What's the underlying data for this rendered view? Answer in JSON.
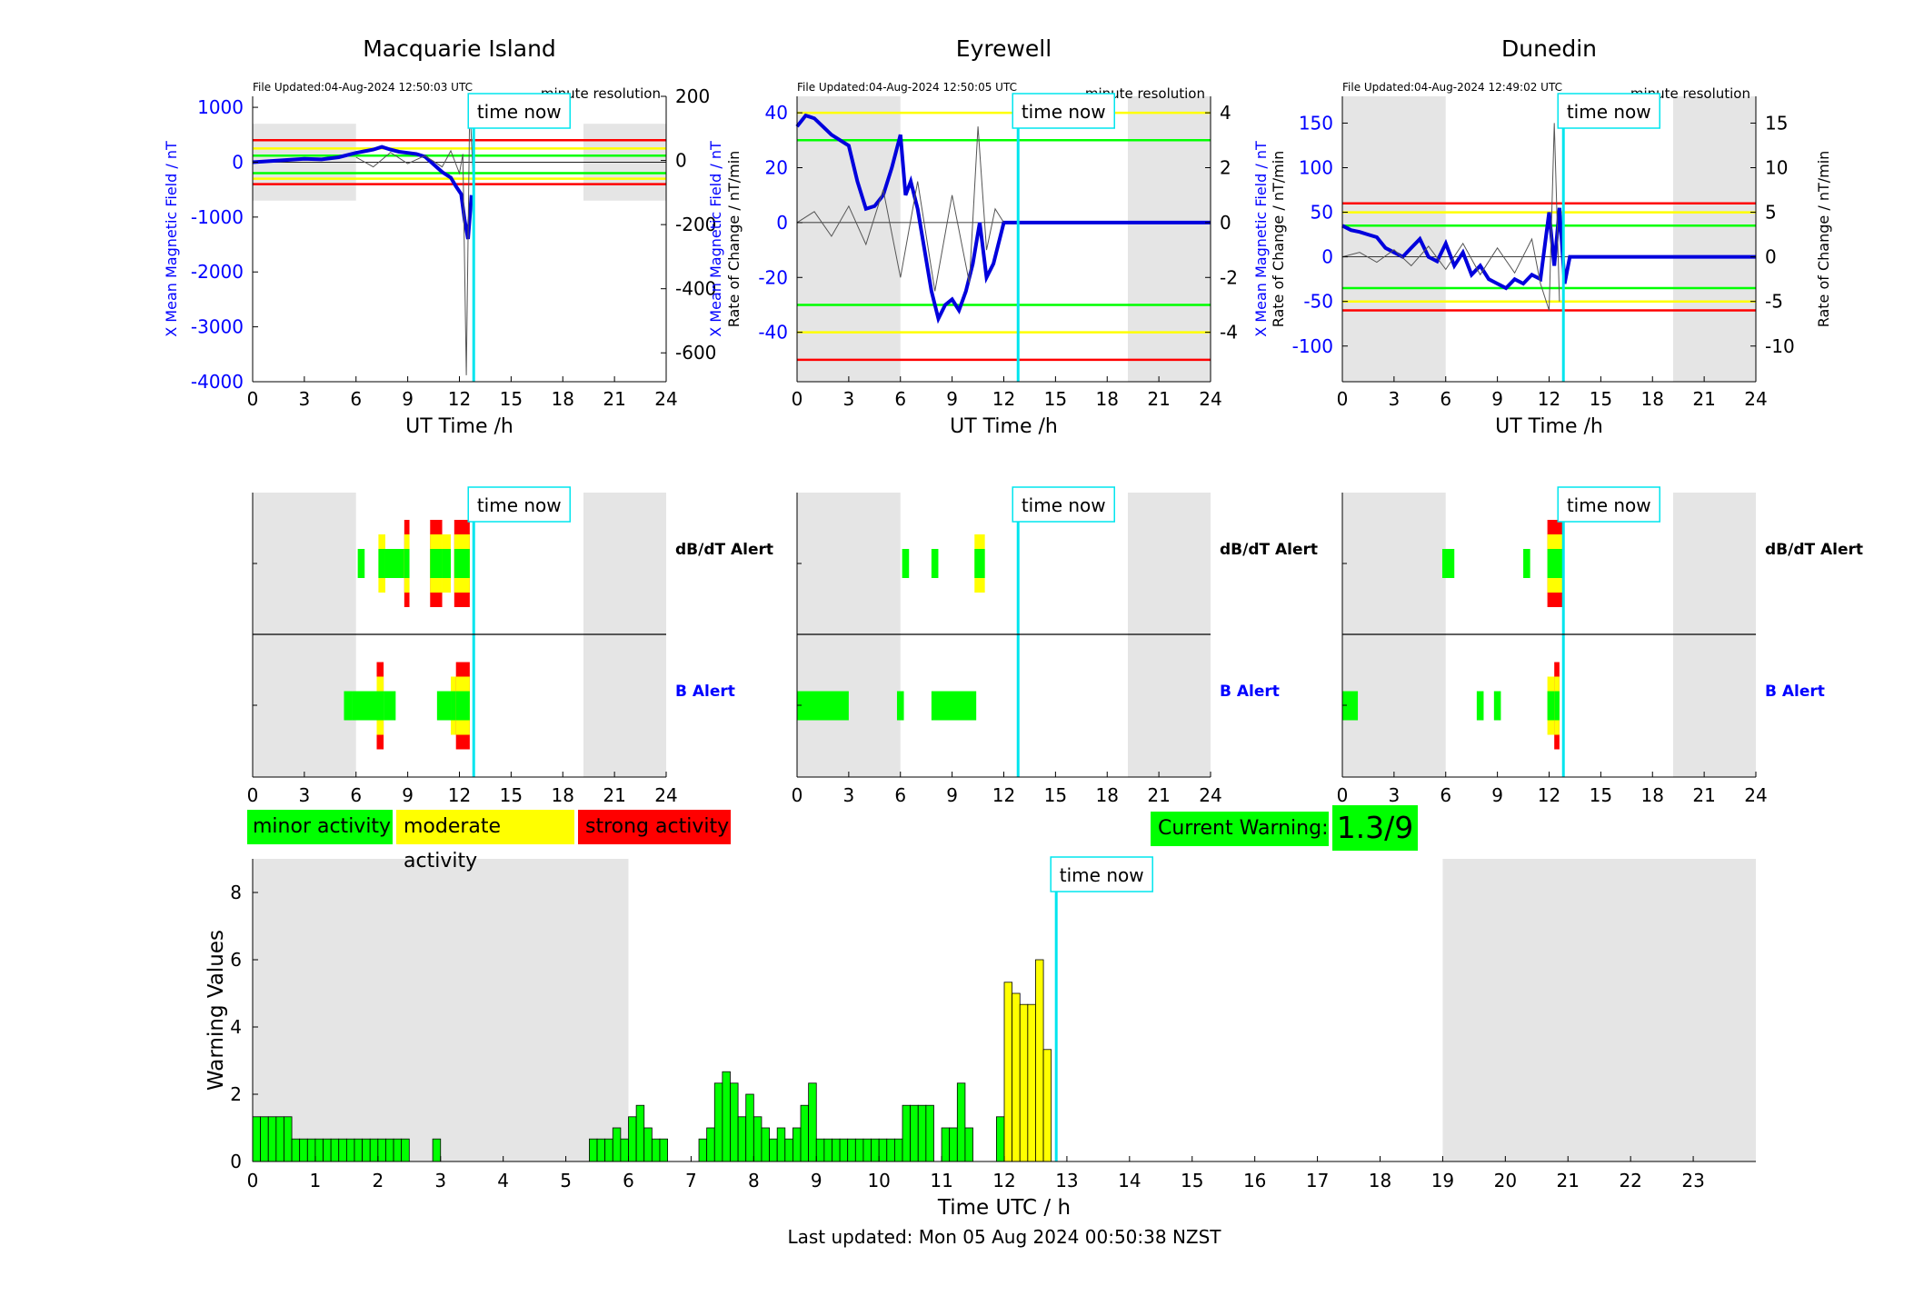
{
  "colors": {
    "axis": "#000000",
    "x_axis_blue": "#0000ff",
    "shade": "#e5e5e5",
    "minor": "#00ff00",
    "moderate": "#ffff00",
    "strong": "#ff0000",
    "time_now": "#00e5ee",
    "field_line": "#0000dd",
    "rate_line": "#555555"
  },
  "labels": {
    "time_now": "time now",
    "x_axis_top": "UT Time /h",
    "y_left_top": "X Mean Magnetic Field / nT",
    "y_right_top": "Rate of Change / nT/min",
    "minute_resolution": "minute resolution",
    "dbdt_alert": "dB/dT Alert",
    "b_alert": "B Alert",
    "x_axis_bottom": "Time UTC / h",
    "y_bottom": "Warning Values",
    "last_updated": "Last updated: Mon 05 Aug 2024 00:50:38 NZST"
  },
  "legend": {
    "minor": "minor activity",
    "moderate": "moderate activity",
    "strong": "strong activity",
    "current_warning_label": "Current Warning:",
    "current_warning_value": "1.3/9"
  },
  "time_now_hour": 12.83,
  "night_shading_hours": [
    [
      0,
      6
    ],
    [
      19.2,
      24
    ]
  ],
  "chart_data": [
    {
      "type": "line",
      "title": "Macquarie Island",
      "file_updated": "File Updated:04-Aug-2024 12:50:03 UTC",
      "xlabel": "UT Time /h",
      "xlim": [
        0,
        24
      ],
      "xticks": [
        0,
        3,
        6,
        9,
        12,
        15,
        18,
        21,
        24
      ],
      "ylabel_left": "X Mean Magnetic Field / nT",
      "ylim_left": [
        -4000,
        1200
      ],
      "yticks_left": [
        1000,
        0,
        -1000,
        -2000,
        -3000,
        -4000
      ],
      "ylabel_right": "Rate of Change / nT/min",
      "ylim_right": [
        -690,
        200
      ],
      "yticks_right": [
        200,
        0,
        -200,
        -400,
        -600
      ],
      "thresholds_left": [
        {
          "value": 400,
          "level": "strong"
        },
        {
          "value": 250,
          "level": "moderate"
        },
        {
          "value": 120,
          "level": "minor"
        },
        {
          "value": -200,
          "level": "minor"
        },
        {
          "value": -300,
          "level": "moderate"
        },
        {
          "value": -400,
          "level": "strong"
        }
      ],
      "series": [
        {
          "axis": "left",
          "style": "field",
          "x": [
            0,
            1,
            2,
            3,
            4,
            5,
            5.5,
            6,
            6.5,
            7,
            7.5,
            8,
            8.5,
            9,
            9.5,
            10,
            10.5,
            11,
            11.5,
            11.8,
            12.1,
            12.3,
            12.5,
            12.7
          ],
          "y": [
            0,
            20,
            40,
            60,
            50,
            90,
            130,
            170,
            200,
            230,
            280,
            230,
            190,
            170,
            150,
            100,
            -40,
            -180,
            -280,
            -440,
            -580,
            -1050,
            -1400,
            -600
          ]
        },
        {
          "axis": "right",
          "style": "rate",
          "x": [
            6,
            7,
            8,
            9,
            10,
            11,
            11.5,
            12.0,
            12.2,
            12.4,
            12.6,
            12.8
          ],
          "y": [
            10,
            -20,
            25,
            -10,
            15,
            -20,
            30,
            -40,
            20,
            -670,
            180,
            -60
          ]
        }
      ],
      "dbdt_alert": [
        {
          "start": 6.1,
          "end": 6.5,
          "level": "minor"
        },
        {
          "start": 7.3,
          "end": 7.7,
          "level": "moderate"
        },
        {
          "start": 7.7,
          "end": 8.8,
          "level": "minor"
        },
        {
          "start": 8.8,
          "end": 9.1,
          "level": "strong"
        },
        {
          "start": 10.3,
          "end": 11.0,
          "level": "strong"
        },
        {
          "start": 11.0,
          "end": 11.5,
          "level": "moderate"
        },
        {
          "start": 11.7,
          "end": 12.6,
          "level": "strong"
        }
      ],
      "b_alert": [
        {
          "start": 5.3,
          "end": 5.8,
          "level": "minor"
        },
        {
          "start": 5.8,
          "end": 7.2,
          "level": "minor"
        },
        {
          "start": 7.2,
          "end": 7.6,
          "level": "strong"
        },
        {
          "start": 7.6,
          "end": 8.3,
          "level": "minor"
        },
        {
          "start": 10.7,
          "end": 11.5,
          "level": "minor"
        },
        {
          "start": 11.5,
          "end": 11.8,
          "level": "moderate"
        },
        {
          "start": 11.8,
          "end": 12.6,
          "level": "strong"
        }
      ]
    },
    {
      "type": "line",
      "title": "Eyrewell",
      "file_updated": "File Updated:04-Aug-2024 12:50:05 UTC",
      "xlabel": "UT Time /h",
      "xlim": [
        0,
        24
      ],
      "xticks": [
        0,
        3,
        6,
        9,
        12,
        15,
        18,
        21,
        24
      ],
      "ylabel_left": "X Mean Magnetic Field / nT",
      "ylim_left": [
        -58,
        46
      ],
      "yticks_left": [
        40,
        20,
        0,
        -20,
        -40
      ],
      "ylabel_right": "Rate of Change / nT/min",
      "ylim_right": [
        -5.8,
        4.6
      ],
      "yticks_right": [
        4,
        2,
        0,
        -2,
        -4
      ],
      "thresholds_left": [
        {
          "value": 40,
          "level": "moderate"
        },
        {
          "value": 30,
          "level": "minor"
        },
        {
          "value": -30,
          "level": "minor"
        },
        {
          "value": -40,
          "level": "moderate"
        },
        {
          "value": -50,
          "level": "strong"
        }
      ],
      "series": [
        {
          "axis": "left",
          "style": "field",
          "x": [
            0,
            0.5,
            1.0,
            1.5,
            2.0,
            2.5,
            3.0,
            3.5,
            4.0,
            4.5,
            5.0,
            5.5,
            6.0,
            6.3,
            6.6,
            7.0,
            7.4,
            7.8,
            8.2,
            8.6,
            9.0,
            9.4,
            9.8,
            10.2,
            10.6,
            11.0,
            11.4,
            11.8,
            12.0,
            13,
            24
          ],
          "y": [
            35,
            39,
            38,
            35,
            32,
            30,
            28,
            15,
            5,
            6,
            10,
            20,
            32,
            10,
            15,
            5,
            -10,
            -25,
            -35,
            -30,
            -28,
            -32,
            -25,
            -15,
            0,
            -20,
            -15,
            -5,
            0,
            0,
            0
          ]
        },
        {
          "axis": "right",
          "style": "rate",
          "x": [
            0,
            1,
            2,
            3,
            4,
            5,
            6,
            7,
            8,
            9,
            10,
            10.5,
            11,
            11.5,
            12
          ],
          "y": [
            0,
            0.4,
            -0.5,
            0.6,
            -0.8,
            1.2,
            -2.0,
            1.5,
            -2.5,
            1.0,
            -2.2,
            3.5,
            -1.0,
            0.5,
            0
          ]
        }
      ],
      "dbdt_alert": [
        {
          "start": 6.1,
          "end": 6.5,
          "level": "minor"
        },
        {
          "start": 7.8,
          "end": 8.2,
          "level": "minor"
        },
        {
          "start": 10.3,
          "end": 10.9,
          "level": "moderate"
        }
      ],
      "b_alert": [
        {
          "start": 0,
          "end": 3.0,
          "level": "minor"
        },
        {
          "start": 5.8,
          "end": 6.2,
          "level": "minor"
        },
        {
          "start": 7.8,
          "end": 10.4,
          "level": "minor"
        }
      ]
    },
    {
      "type": "line",
      "title": "Dunedin",
      "file_updated": "File Updated:04-Aug-2024 12:49:02 UTC",
      "xlabel": "UT Time /h",
      "xlim": [
        0,
        24
      ],
      "xticks": [
        0,
        3,
        6,
        9,
        12,
        15,
        18,
        21,
        24
      ],
      "ylabel_left": "X Mean Magnetic Field / nT",
      "ylim_left": [
        -140,
        180
      ],
      "yticks_left": [
        150,
        100,
        50,
        0,
        -50,
        -100
      ],
      "ylabel_right": "Rate of Change / nT/min",
      "ylim_right": [
        -14,
        18
      ],
      "yticks_right": [
        15,
        10,
        5,
        0,
        -5,
        -10
      ],
      "thresholds_left": [
        {
          "value": 60,
          "level": "strong"
        },
        {
          "value": 50,
          "level": "moderate"
        },
        {
          "value": 35,
          "level": "minor"
        },
        {
          "value": -35,
          "level": "minor"
        },
        {
          "value": -50,
          "level": "moderate"
        },
        {
          "value": -60,
          "level": "strong"
        }
      ],
      "series": [
        {
          "axis": "left",
          "style": "field",
          "x": [
            0,
            0.5,
            1,
            1.5,
            2,
            2.5,
            3,
            3.5,
            4,
            4.5,
            5,
            5.5,
            6,
            6.5,
            7,
            7.5,
            8,
            8.5,
            9,
            9.5,
            10,
            10.5,
            11,
            11.5,
            12,
            12.3,
            12.6,
            12.9,
            13.2,
            24
          ],
          "y": [
            35,
            30,
            28,
            25,
            22,
            10,
            5,
            0,
            10,
            20,
            0,
            -5,
            15,
            -10,
            5,
            -20,
            -10,
            -25,
            -30,
            -35,
            -25,
            -30,
            -20,
            -25,
            50,
            -10,
            55,
            -30,
            0,
            0
          ]
        },
        {
          "axis": "right",
          "style": "rate",
          "x": [
            0,
            1,
            2,
            3,
            4,
            5,
            6,
            7,
            8,
            9,
            10,
            11,
            11.5,
            12,
            12.3,
            12.6
          ],
          "y": [
            0,
            0.5,
            -0.6,
            0.8,
            -1.0,
            1.2,
            -1.4,
            1.5,
            -2.0,
            1.0,
            -1.8,
            2.0,
            -3.0,
            -6.0,
            15.0,
            -5.0
          ]
        }
      ],
      "dbdt_alert": [
        {
          "start": 5.8,
          "end": 6.5,
          "level": "minor"
        },
        {
          "start": 10.5,
          "end": 10.9,
          "level": "minor"
        },
        {
          "start": 11.9,
          "end": 12.8,
          "level": "strong"
        }
      ],
      "b_alert": [
        {
          "start": 0,
          "end": 0.9,
          "level": "minor"
        },
        {
          "start": 7.8,
          "end": 8.2,
          "level": "minor"
        },
        {
          "start": 8.8,
          "end": 9.2,
          "level": "minor"
        },
        {
          "start": 11.9,
          "end": 12.3,
          "level": "moderate"
        },
        {
          "start": 12.3,
          "end": 12.6,
          "level": "strong"
        }
      ]
    },
    {
      "type": "bar",
      "title": "",
      "xlabel": "Time UTC / h",
      "ylabel": "Warning Values",
      "xlim": [
        0,
        24
      ],
      "ylim": [
        0,
        9
      ],
      "xticks": [
        0,
        1,
        2,
        3,
        4,
        5,
        6,
        7,
        8,
        9,
        10,
        11,
        12,
        13,
        14,
        15,
        16,
        17,
        18,
        19,
        20,
        21,
        22,
        23
      ],
      "yticks": [
        0,
        2,
        4,
        6,
        8
      ],
      "bar_width_hours": 0.125,
      "shading_hours": [
        [
          0,
          6
        ],
        [
          19,
          24
        ]
      ],
      "bars": [
        [
          0.0,
          1.33,
          "minor"
        ],
        [
          0.125,
          1.33,
          "minor"
        ],
        [
          0.25,
          1.33,
          "minor"
        ],
        [
          0.375,
          1.33,
          "minor"
        ],
        [
          0.5,
          1.33,
          "minor"
        ],
        [
          0.625,
          0.67,
          "minor"
        ],
        [
          0.75,
          0.67,
          "minor"
        ],
        [
          0.875,
          0.67,
          "minor"
        ],
        [
          1.0,
          0.67,
          "minor"
        ],
        [
          1.125,
          0.67,
          "minor"
        ],
        [
          1.25,
          0.67,
          "minor"
        ],
        [
          1.375,
          0.67,
          "minor"
        ],
        [
          1.5,
          0.67,
          "minor"
        ],
        [
          1.625,
          0.67,
          "minor"
        ],
        [
          1.75,
          0.67,
          "minor"
        ],
        [
          1.875,
          0.67,
          "minor"
        ],
        [
          2.0,
          0.67,
          "minor"
        ],
        [
          2.125,
          0.67,
          "minor"
        ],
        [
          2.25,
          0.67,
          "minor"
        ],
        [
          2.375,
          0.67,
          "minor"
        ],
        [
          2.875,
          0.67,
          "minor"
        ],
        [
          5.375,
          0.67,
          "minor"
        ],
        [
          5.5,
          0.67,
          "minor"
        ],
        [
          5.625,
          0.67,
          "minor"
        ],
        [
          5.75,
          1.0,
          "minor"
        ],
        [
          5.875,
          0.67,
          "minor"
        ],
        [
          6.0,
          1.33,
          "minor"
        ],
        [
          6.125,
          1.67,
          "minor"
        ],
        [
          6.25,
          1.0,
          "minor"
        ],
        [
          6.375,
          0.67,
          "minor"
        ],
        [
          6.5,
          0.67,
          "minor"
        ],
        [
          7.125,
          0.67,
          "minor"
        ],
        [
          7.25,
          1.0,
          "minor"
        ],
        [
          7.375,
          2.33,
          "minor"
        ],
        [
          7.5,
          2.67,
          "minor"
        ],
        [
          7.625,
          2.33,
          "minor"
        ],
        [
          7.75,
          1.33,
          "minor"
        ],
        [
          7.875,
          2.0,
          "minor"
        ],
        [
          8.0,
          1.33,
          "minor"
        ],
        [
          8.125,
          1.0,
          "minor"
        ],
        [
          8.25,
          0.67,
          "minor"
        ],
        [
          8.375,
          1.0,
          "minor"
        ],
        [
          8.5,
          0.67,
          "minor"
        ],
        [
          8.625,
          1.0,
          "minor"
        ],
        [
          8.75,
          1.67,
          "minor"
        ],
        [
          8.875,
          2.33,
          "minor"
        ],
        [
          9.0,
          0.67,
          "minor"
        ],
        [
          9.125,
          0.67,
          "minor"
        ],
        [
          9.25,
          0.67,
          "minor"
        ],
        [
          9.375,
          0.67,
          "minor"
        ],
        [
          9.5,
          0.67,
          "minor"
        ],
        [
          9.625,
          0.67,
          "minor"
        ],
        [
          9.75,
          0.67,
          "minor"
        ],
        [
          9.875,
          0.67,
          "minor"
        ],
        [
          10.0,
          0.67,
          "minor"
        ],
        [
          10.125,
          0.67,
          "minor"
        ],
        [
          10.25,
          0.67,
          "minor"
        ],
        [
          10.375,
          1.67,
          "minor"
        ],
        [
          10.5,
          1.67,
          "minor"
        ],
        [
          10.625,
          1.67,
          "minor"
        ],
        [
          10.75,
          1.67,
          "minor"
        ],
        [
          11.0,
          1.0,
          "minor"
        ],
        [
          11.125,
          1.0,
          "minor"
        ],
        [
          11.25,
          2.33,
          "minor"
        ],
        [
          11.375,
          1.0,
          "minor"
        ],
        [
          11.875,
          1.33,
          "minor"
        ],
        [
          12.0,
          5.33,
          "moderate"
        ],
        [
          12.125,
          5.0,
          "moderate"
        ],
        [
          12.25,
          4.67,
          "moderate"
        ],
        [
          12.375,
          4.67,
          "moderate"
        ],
        [
          12.5,
          6.0,
          "moderate"
        ],
        [
          12.625,
          3.33,
          "moderate"
        ]
      ]
    }
  ]
}
